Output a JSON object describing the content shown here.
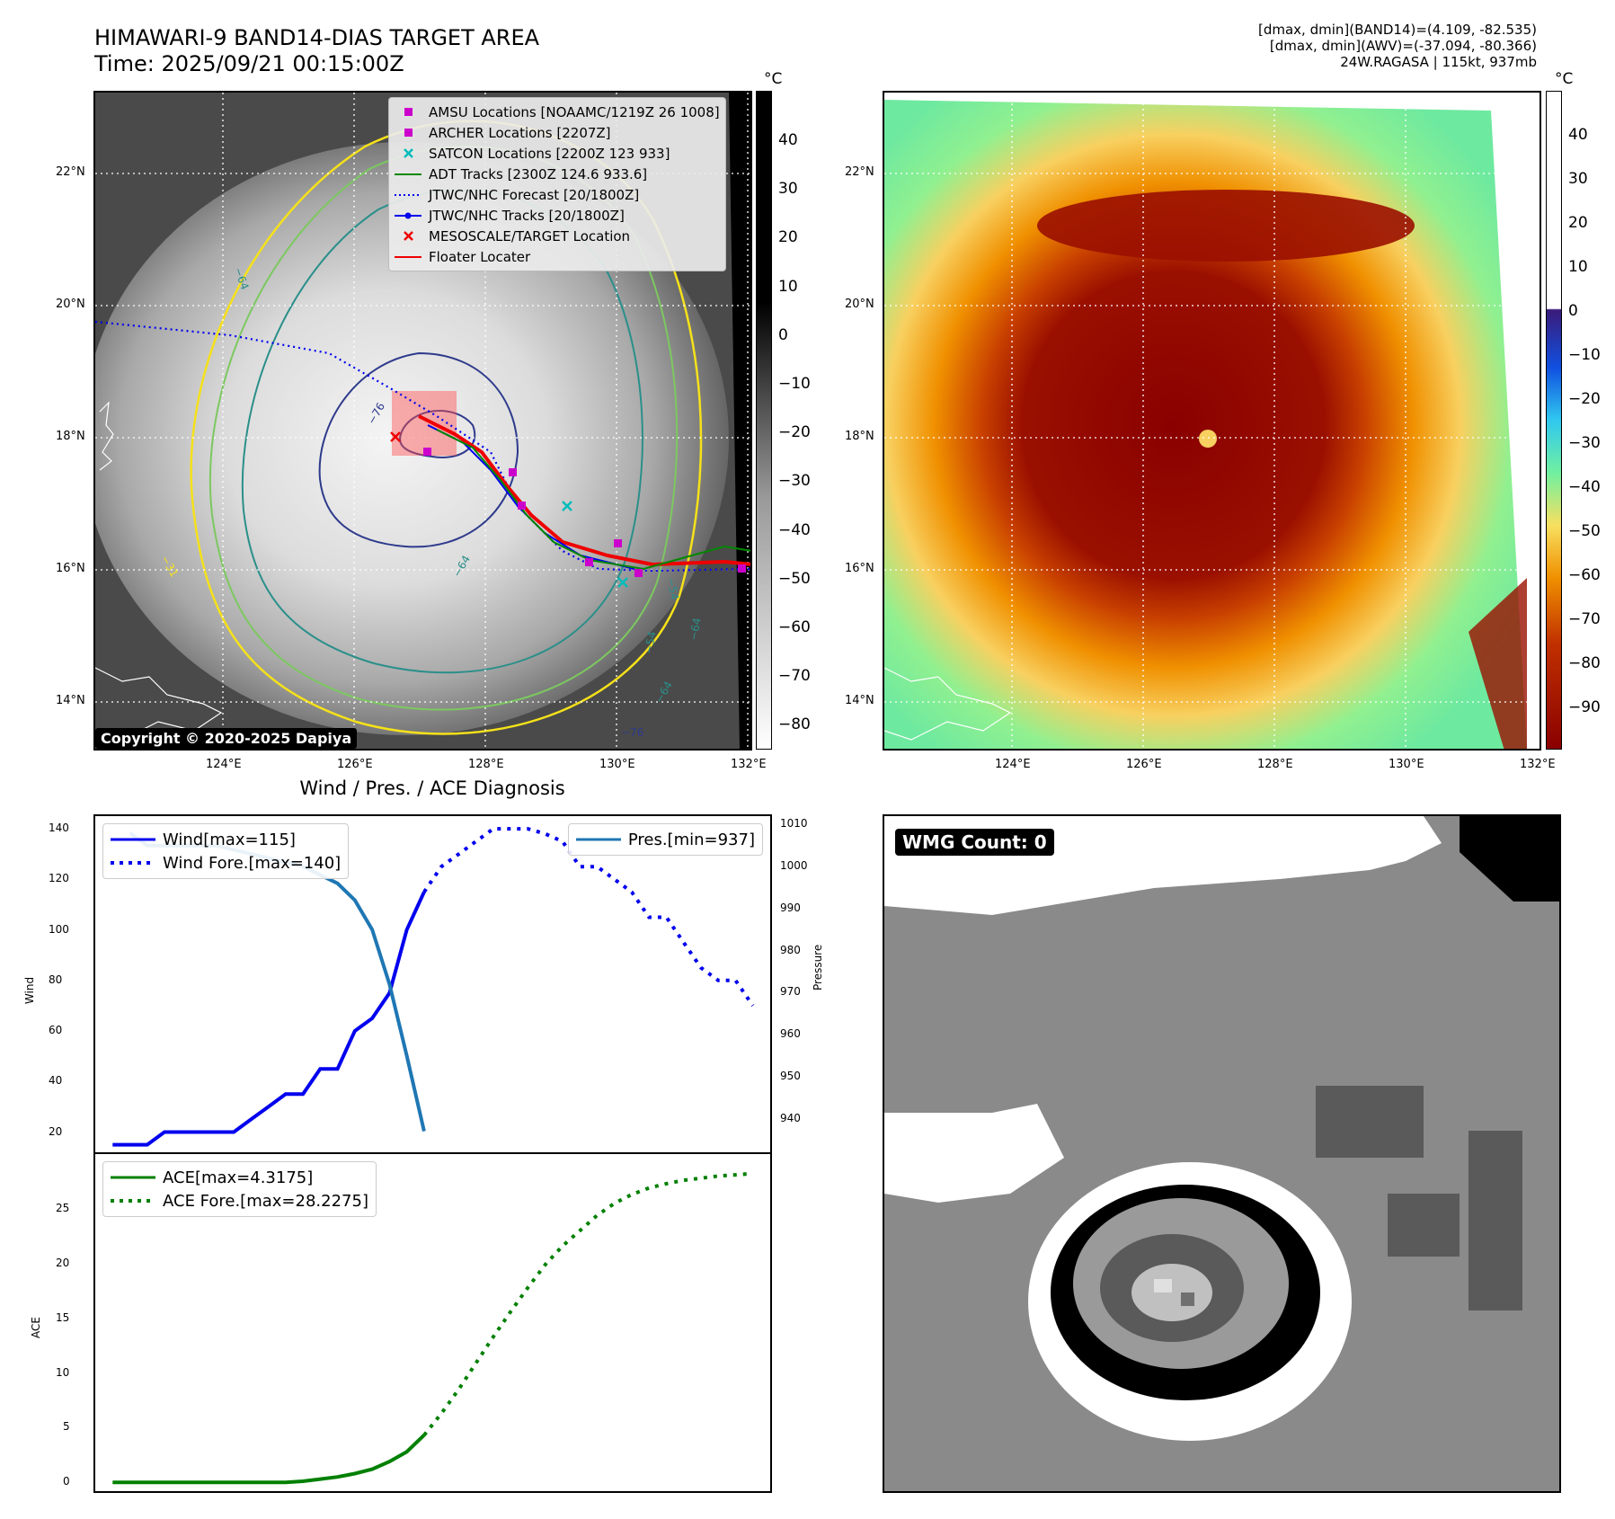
{
  "header": {
    "title_line1": "HIMAWARI-9 BAND14-DIAS TARGET AREA",
    "title_line2": "Time: 2025/09/21 00:15:00Z",
    "info_line1": "[dmax, dmin](BAND14)=(4.109, -82.535)",
    "info_line2": "[dmax, dmin](AWV)=(-37.094, -80.366)",
    "info_line3": "24W.RAGASA | 115kt, 937mb"
  },
  "map_axes": {
    "lat_labels": [
      "22°N",
      "20°N",
      "18°N",
      "16°N",
      "14°N"
    ],
    "lon_labels": [
      "124°E",
      "126°E",
      "128°E",
      "130°E",
      "132°E"
    ]
  },
  "left_map": {
    "legend": [
      {
        "label": "AMSU Locations [NOAAMC/1219Z 26 1008]",
        "color": "#cc00cc",
        "marker": "square"
      },
      {
        "label": "ARCHER Locations [2207Z]",
        "color": "#cc00cc",
        "marker": "square"
      },
      {
        "label": "SATCON Locations [2200Z 123 933]",
        "color": "#00bbbb",
        "marker": "x"
      },
      {
        "label": "ADT Tracks [2300Z 124.6 933.6]",
        "color": "#008800",
        "marker": "line"
      },
      {
        "label": "JTWC/NHC Forecast [20/1800Z]",
        "color": "#0000ee",
        "marker": "dotted"
      },
      {
        "label": "JTWC/NHC Tracks [20/1800Z]",
        "color": "#0000ee",
        "marker": "line-dot"
      },
      {
        "label": "MESOSCALE/TARGET Location",
        "color": "#ee0000",
        "marker": "x"
      },
      {
        "label": "Floater Locater",
        "color": "#ee0000",
        "marker": "line"
      }
    ],
    "copyright": "Copyright © 2020-2025 Dapiya",
    "colorbar_unit": "°C",
    "colorbar_ticks": [
      "40",
      "30",
      "20",
      "10",
      "0",
      "−10",
      "−20",
      "−30",
      "−40",
      "−50",
      "−60",
      "−70",
      "−80"
    ],
    "contour_labels": [
      "−64",
      "−76",
      "−54",
      "−64",
      "−54",
      "−64",
      "−64",
      "−76",
      "−31"
    ]
  },
  "right_map": {
    "colorbar_unit": "°C",
    "colorbar_ticks": [
      "40",
      "30",
      "20",
      "10",
      "0",
      "−10",
      "−20",
      "−30",
      "−40",
      "−50",
      "−60",
      "−70",
      "−80",
      "−90"
    ]
  },
  "diagnosis": {
    "title": "Wind / Pres. / ACE Diagnosis",
    "wind_ylabel": "Wind",
    "pressure_ylabel": "Pressure",
    "ace_ylabel": "ACE",
    "wind_ticks": [
      "140",
      "120",
      "100",
      "80",
      "60",
      "40",
      "20"
    ],
    "pressure_ticks": [
      "1010",
      "1000",
      "990",
      "980",
      "970",
      "960",
      "950",
      "940"
    ],
    "ace_ticks": [
      "25",
      "20",
      "15",
      "10",
      "5",
      "0"
    ]
  },
  "chart_data": [
    {
      "type": "line",
      "title": "Wind / Pres. / ACE Diagnosis",
      "ylabel": "Wind",
      "y2label": "Pressure",
      "ylim": [
        12,
        145
      ],
      "y2lim": [
        932,
        1012
      ],
      "series": [
        {
          "name": "Wind[max=115]",
          "axis": "left",
          "style": "solid",
          "color": "#0000ee",
          "x": [
            0,
            1,
            2,
            3,
            4,
            5,
            6,
            7,
            8,
            9,
            10,
            11,
            12,
            13,
            14,
            15,
            16,
            17,
            18
          ],
          "values": [
            15,
            15,
            15,
            20,
            20,
            20,
            20,
            20,
            25,
            30,
            35,
            35,
            45,
            45,
            60,
            65,
            75,
            100,
            115
          ]
        },
        {
          "name": "Wind Fore.[max=140]",
          "axis": "left",
          "style": "dotted",
          "color": "#0000ee",
          "x": [
            18,
            19,
            20,
            21,
            22,
            23,
            24,
            25,
            26,
            27,
            28,
            29,
            30,
            31,
            32,
            33,
            34,
            35,
            36,
            37
          ],
          "values": [
            115,
            125,
            130,
            135,
            140,
            140,
            140,
            138,
            135,
            125,
            125,
            120,
            115,
            105,
            105,
            95,
            85,
            80,
            80,
            70
          ]
        },
        {
          "name": "Pres.[min=937]",
          "axis": "right",
          "style": "solid",
          "color": "#1f77b4",
          "x": [
            1,
            2,
            3,
            4,
            5,
            6,
            7,
            8,
            9,
            10,
            11,
            12,
            13,
            14,
            15,
            16,
            17,
            18
          ],
          "values": [
            1008,
            1005,
            1005,
            1005,
            1005,
            1005,
            1004,
            1003,
            1002,
            1001,
            1000,
            998,
            996,
            992,
            985,
            972,
            955,
            937
          ]
        }
      ]
    },
    {
      "type": "line",
      "ylabel": "ACE",
      "ylim": [
        -0.8,
        30
      ],
      "series": [
        {
          "name": "ACE[max=4.3175]",
          "style": "solid",
          "color": "#008000",
          "x": [
            0,
            2,
            4,
            6,
            8,
            10,
            11,
            12,
            13,
            14,
            15,
            16,
            17,
            18
          ],
          "values": [
            0,
            0,
            0,
            0,
            0,
            0,
            0.1,
            0.3,
            0.5,
            0.8,
            1.2,
            1.9,
            2.8,
            4.3175
          ]
        },
        {
          "name": "ACE Fore.[max=28.2275]",
          "style": "dotted",
          "color": "#008000",
          "x": [
            18,
            19,
            20,
            21,
            22,
            23,
            24,
            25,
            26,
            27,
            28,
            29,
            30,
            31,
            32,
            33,
            34,
            35,
            36,
            37
          ],
          "values": [
            4.3175,
            6.3,
            8.5,
            10.9,
            13.3,
            15.6,
            17.8,
            19.9,
            21.6,
            23.0,
            24.4,
            25.5,
            26.3,
            26.9,
            27.3,
            27.6,
            27.8,
            28.0,
            28.1,
            28.2275
          ]
        }
      ]
    }
  ],
  "wmg_panel": {
    "badge": "WMG Count: 0"
  },
  "colors": {
    "wind": "#0000ee",
    "pressure": "#1f77b4",
    "ace": "#008000",
    "map_grid": "#ffffff"
  }
}
